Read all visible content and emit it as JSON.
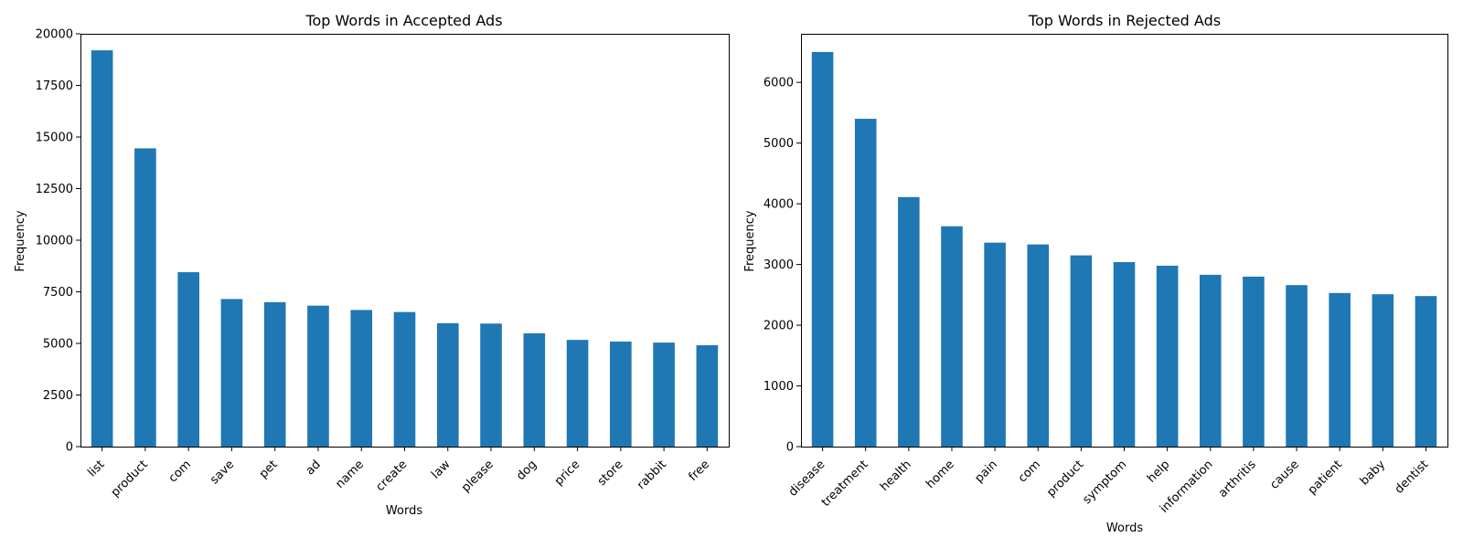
{
  "chart_data": [
    {
      "type": "bar",
      "title": "Top Words in Accepted Ads",
      "xlabel": "Words",
      "ylabel": "Frequency",
      "categories": [
        "list",
        "product",
        "com",
        "save",
        "pet",
        "ad",
        "name",
        "create",
        "law",
        "please",
        "dog",
        "price",
        "store",
        "rabbit",
        "free"
      ],
      "values": [
        19200,
        14450,
        8450,
        7150,
        7000,
        6830,
        6620,
        6520,
        5980,
        5960,
        5490,
        5170,
        5090,
        5040,
        4910
      ],
      "ylim": [
        0,
        20000
      ],
      "yticks": [
        0,
        2500,
        5000,
        7500,
        10000,
        12500,
        15000,
        17500,
        20000
      ],
      "ytick_labels": [
        "0",
        "2500",
        "5000",
        "7500",
        "10000",
        "12500",
        "15000",
        "17500",
        "20000"
      ],
      "bar_color": "#1f77b4",
      "grid": false,
      "legend": false
    },
    {
      "type": "bar",
      "title": "Top Words in Rejected Ads",
      "xlabel": "Words",
      "ylabel": "Frequency",
      "categories": [
        "disease",
        "treatment",
        "health",
        "home",
        "pain",
        "com",
        "product",
        "symptom",
        "help",
        "information",
        "arthritis",
        "cause",
        "patient",
        "baby",
        "dentist"
      ],
      "values": [
        6500,
        5400,
        4110,
        3630,
        3360,
        3330,
        3150,
        3040,
        2980,
        2830,
        2800,
        2660,
        2530,
        2510,
        2480
      ],
      "ylim": [
        0,
        6800
      ],
      "yticks": [
        0,
        1000,
        2000,
        3000,
        4000,
        5000,
        6000
      ],
      "ytick_labels": [
        "0",
        "1000",
        "2000",
        "3000",
        "4000",
        "5000",
        "6000"
      ],
      "bar_color": "#1f77b4",
      "grid": false,
      "legend": false
    }
  ]
}
